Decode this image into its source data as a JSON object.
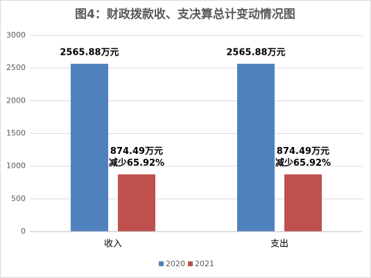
{
  "chart_data": {
    "type": "bar",
    "title": "图4：财政拨款收、支决算总计变动情况图",
    "categories": [
      "收入",
      "支出"
    ],
    "series": [
      {
        "name": "2020",
        "color": "#4f81bd",
        "values": [
          2565.88,
          2565.88
        ],
        "value_labels": [
          "2565.88万元",
          "2565.88万元"
        ]
      },
      {
        "name": "2021",
        "color": "#c0504d",
        "values": [
          874.49,
          874.49
        ],
        "value_labels": [
          "874.49万元",
          "874.49万元"
        ],
        "annotations": [
          "减少65.92%",
          "减少65.92%"
        ]
      }
    ],
    "ylim": [
      0,
      3000
    ],
    "yticks": [
      0,
      500,
      1000,
      1500,
      2000,
      2500,
      3000
    ],
    "grid": true,
    "legend": "bottom"
  }
}
